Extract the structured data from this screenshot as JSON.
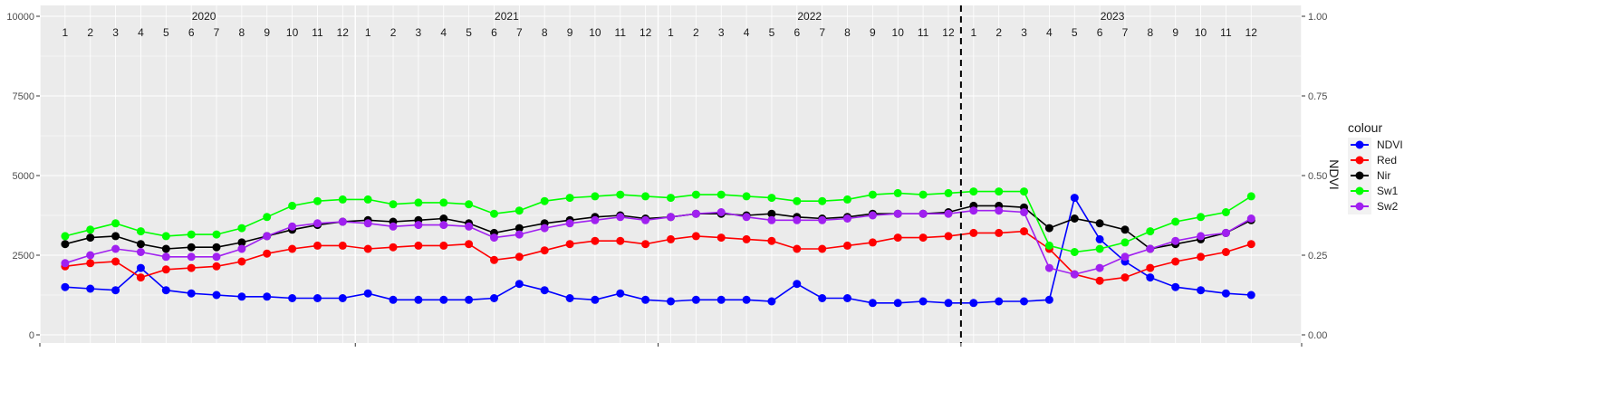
{
  "chart_data": {
    "type": "line",
    "x_start": "2020-01",
    "ylim": [
      0,
      10000
    ],
    "y2lim": [
      0,
      1
    ],
    "y_ticks": [
      "0",
      "2500",
      "5000",
      "7500",
      "10000"
    ],
    "y2_ticks": [
      "0.00",
      "0.25",
      "0.50",
      "0.75",
      "1.00"
    ],
    "y2label": "NDVI",
    "years": [
      "2020",
      "2021",
      "2022",
      "2023"
    ],
    "months": [
      "1",
      "2",
      "3",
      "4",
      "5",
      "6",
      "7",
      "8",
      "9",
      "10",
      "11",
      "12"
    ],
    "vline_month_index": 36,
    "legend_title": "colour",
    "grid": true,
    "legend_position": "right",
    "series": [
      {
        "name": "NDVI",
        "color": "#0000ff",
        "axis": "NDVI",
        "values": [
          1500,
          1450,
          1400,
          2100,
          1400,
          1300,
          1250,
          1200,
          1200,
          1150,
          1150,
          1150,
          1300,
          1100,
          1100,
          1100,
          1100,
          1150,
          1600,
          1400,
          1150,
          1100,
          1300,
          1100,
          1050,
          1100,
          1100,
          1100,
          1050,
          1600,
          1150,
          1150,
          1000,
          1000,
          1050,
          1000,
          1000,
          1050,
          1050,
          1100,
          4300,
          3000,
          2300,
          1800,
          1500,
          1400,
          1300,
          1250
        ]
      },
      {
        "name": "Red",
        "color": "#ff0000",
        "values": [
          2150,
          2250,
          2300,
          1800,
          2050,
          2100,
          2150,
          2300,
          2550,
          2700,
          2800,
          2800,
          2700,
          2750,
          2800,
          2800,
          2850,
          2350,
          2450,
          2650,
          2850,
          2950,
          2950,
          2850,
          3000,
          3100,
          3050,
          3000,
          2950,
          2700,
          2700,
          2800,
          2900,
          3050,
          3050,
          3100,
          3200,
          3200,
          3250,
          2700,
          1900,
          1700,
          1800,
          2100,
          2300,
          2450,
          2600,
          2850
        ]
      },
      {
        "name": "Nir",
        "color": "#000000",
        "values": [
          2850,
          3050,
          3100,
          2850,
          2700,
          2750,
          2750,
          2900,
          3100,
          3300,
          3450,
          3550,
          3600,
          3550,
          3600,
          3650,
          3500,
          3200,
          3350,
          3500,
          3600,
          3700,
          3750,
          3650,
          3700,
          3800,
          3800,
          3750,
          3800,
          3700,
          3650,
          3700,
          3800,
          3800,
          3800,
          3850,
          4050,
          4050,
          4000,
          3350,
          3650,
          3500,
          3300,
          2700,
          2850,
          3000,
          3200,
          3600
        ]
      },
      {
        "name": "Sw1",
        "color": "#00ff00",
        "values": [
          3100,
          3300,
          3500,
          3250,
          3100,
          3150,
          3150,
          3350,
          3700,
          4050,
          4200,
          4250,
          4250,
          4100,
          4150,
          4150,
          4100,
          3800,
          3900,
          4200,
          4300,
          4350,
          4400,
          4350,
          4300,
          4400,
          4400,
          4350,
          4300,
          4200,
          4200,
          4250,
          4400,
          4450,
          4400,
          4450,
          4500,
          4500,
          4500,
          2800,
          2600,
          2700,
          2900,
          3250,
          3550,
          3700,
          3850,
          4350
        ]
      },
      {
        "name": "Sw2",
        "color": "#a020f0",
        "values": [
          2250,
          2500,
          2700,
          2600,
          2450,
          2450,
          2450,
          2700,
          3100,
          3400,
          3500,
          3550,
          3500,
          3400,
          3450,
          3450,
          3400,
          3050,
          3150,
          3350,
          3500,
          3600,
          3700,
          3600,
          3700,
          3800,
          3850,
          3700,
          3600,
          3600,
          3600,
          3650,
          3750,
          3800,
          3800,
          3800,
          3900,
          3900,
          3850,
          2100,
          1900,
          2100,
          2450,
          2700,
          2950,
          3100,
          3200,
          3650
        ]
      }
    ]
  }
}
